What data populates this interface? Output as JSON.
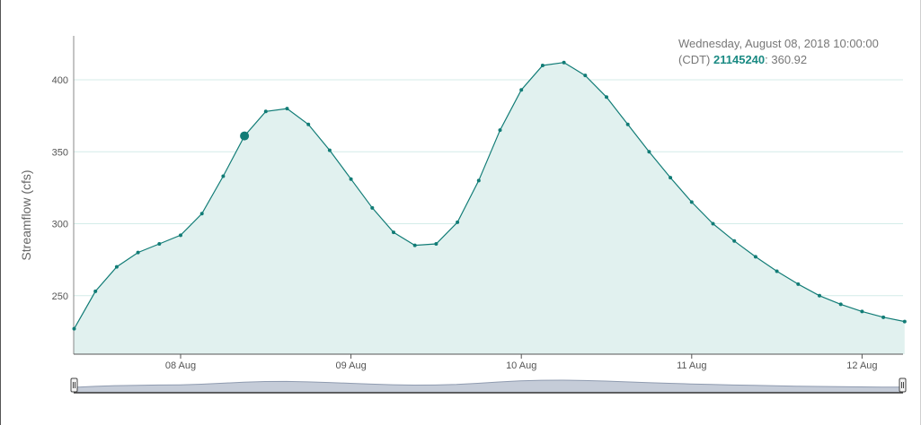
{
  "tooltip": {
    "line1": "Wednesday, August 08, 2018 10:00:00",
    "tz": "(CDT)",
    "sep1": ": ",
    "site": "21145240",
    "sep2": ": ",
    "value": "360.92"
  },
  "colors": {
    "line": "#117c76",
    "fill": "#e1f1ef",
    "grid": "#d4ece9",
    "navigator_fill": "#c5ccd8",
    "navigator_line": "#8f9bb0"
  },
  "chart_data": {
    "type": "area",
    "ylabel": "Streamflow (cfs)",
    "y_ticks": [
      250,
      300,
      350,
      400
    ],
    "x_ticks": [
      "08 Aug",
      "09 Aug",
      "10 Aug",
      "11 Aug",
      "12 Aug"
    ],
    "x_tick_index": [
      5,
      13,
      21,
      29,
      37
    ],
    "ylim": [
      210,
      430
    ],
    "grid": true,
    "highlight_index": 8,
    "series": [
      {
        "values": [
          227,
          253,
          270,
          280,
          286,
          292,
          307,
          333,
          361,
          378,
          380,
          369,
          351,
          331,
          311,
          294,
          285,
          286,
          301,
          330,
          365,
          393,
          410,
          412,
          403,
          388,
          369,
          350,
          332,
          315,
          300,
          288,
          277,
          267,
          258,
          250,
          244,
          239,
          235,
          232
        ]
      }
    ]
  }
}
